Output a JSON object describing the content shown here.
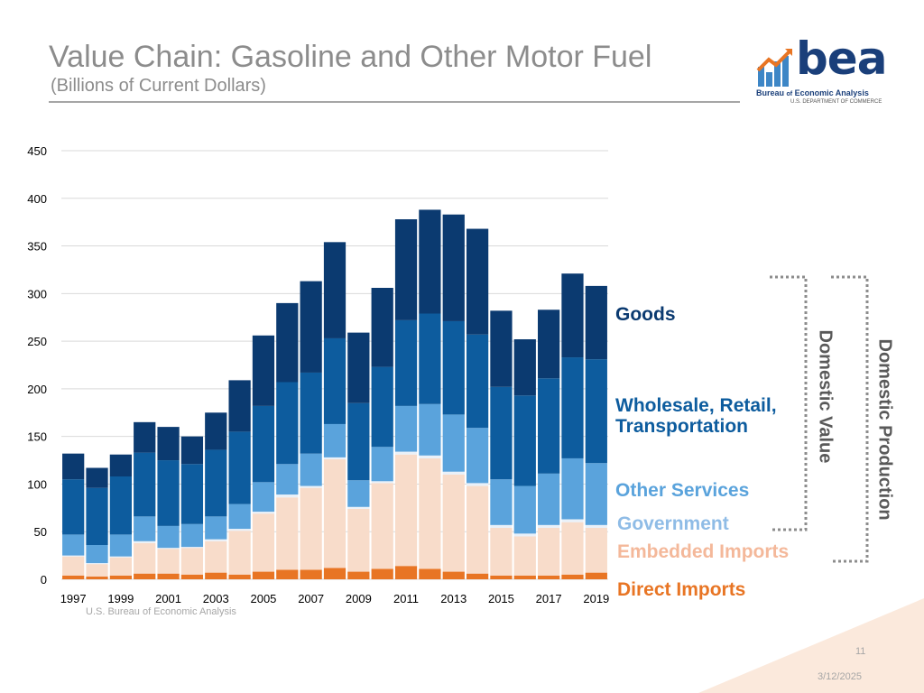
{
  "slide": {
    "title": "Value Chain: Gasoline and Other Motor Fuel",
    "subtitle": "(Billions of Current Dollars)",
    "source": "U.S. Bureau of Economic Analysis",
    "page_number": "11",
    "date": "3/12/2025"
  },
  "logo": {
    "word": "bea",
    "line1_prefix": "Bureau ",
    "line1_of": "of",
    "line1_suffix": " Economic Analysis",
    "line2": "U.S. DEPARTMENT OF COMMERCE"
  },
  "brackets": {
    "domestic_value": "Domestic Value",
    "domestic_production": "Domestic Production"
  },
  "colors": {
    "goods": "#0b3a70",
    "wholesale": "#0d5c9e",
    "other_services": "#5aa3dc",
    "government": "#eaf1f9",
    "embedded_imports": "#f8dcca",
    "direct_imports": "#e87524",
    "grid": "#d9d9d9",
    "axis_text": "#000000"
  },
  "chart_data": {
    "type": "bar",
    "stacked": true,
    "title": "Value Chain: Gasoline and Other Motor Fuel",
    "ylabel": "Billions of Current Dollars",
    "ylim": [
      0,
      450
    ],
    "yticks": [
      0,
      50,
      100,
      150,
      200,
      250,
      300,
      350,
      400,
      450
    ],
    "xtick_labels": [
      "1997",
      "1999",
      "2001",
      "2003",
      "2005",
      "2007",
      "2009",
      "2011",
      "2013",
      "2015",
      "2017",
      "2019"
    ],
    "grid": true,
    "categories": [
      "1997",
      "1998",
      "1999",
      "2000",
      "2001",
      "2002",
      "2003",
      "2004",
      "2005",
      "2006",
      "2007",
      "2008",
      "2009",
      "2010",
      "2011",
      "2012",
      "2013",
      "2014",
      "2015",
      "2016",
      "2017",
      "2018",
      "2019"
    ],
    "series": [
      {
        "name": "Direct Imports",
        "color_key": "direct_imports",
        "values": [
          4,
          3,
          4,
          6,
          6,
          5,
          7,
          5,
          8,
          10,
          10,
          12,
          8,
          11,
          14,
          11,
          8,
          6,
          4,
          4,
          4,
          5,
          7
        ]
      },
      {
        "name": "Embedded Imports",
        "color_key": "embedded_imports",
        "values": [
          20,
          13,
          19,
          32,
          26,
          28,
          33,
          46,
          61,
          76,
          86,
          114,
          66,
          90,
          117,
          116,
          102,
          92,
          50,
          41,
          50,
          55,
          47
        ]
      },
      {
        "name": "Government",
        "color_key": "government",
        "values": [
          1,
          1,
          1,
          2,
          1,
          1,
          2,
          2,
          2,
          3,
          2,
          2,
          2,
          2,
          3,
          3,
          3,
          3,
          3,
          3,
          3,
          3,
          3
        ]
      },
      {
        "name": "Other Services",
        "color_key": "other_services",
        "values": [
          22,
          19,
          23,
          26,
          23,
          24,
          24,
          26,
          31,
          32,
          34,
          35,
          28,
          36,
          48,
          54,
          60,
          58,
          48,
          50,
          54,
          64,
          65
        ]
      },
      {
        "name": "Wholesale, Retail, Transportation",
        "color_key": "wholesale",
        "values": [
          58,
          60,
          61,
          67,
          69,
          63,
          70,
          76,
          80,
          86,
          85,
          90,
          81,
          84,
          90,
          95,
          98,
          98,
          97,
          95,
          100,
          106,
          109
        ]
      },
      {
        "name": "Goods",
        "color_key": "goods",
        "values": [
          27,
          21,
          23,
          32,
          35,
          29,
          39,
          54,
          74,
          83,
          96,
          101,
          74,
          83,
          106,
          109,
          112,
          111,
          80,
          59,
          72,
          88,
          77
        ]
      }
    ],
    "legend": [
      "Goods",
      "Wholesale, Retail, Transportation",
      "Other Services",
      "Government",
      "Embedded Imports",
      "Direct Imports"
    ],
    "legend_placement": "right"
  },
  "legend_labels": {
    "goods": "Goods",
    "wholesale_line1": "Wholesale, Retail,",
    "wholesale_line2": "Transportation",
    "other_services": "Other Services",
    "government": "Government",
    "embedded_imports": "Embedded Imports",
    "direct_imports": "Direct Imports"
  }
}
